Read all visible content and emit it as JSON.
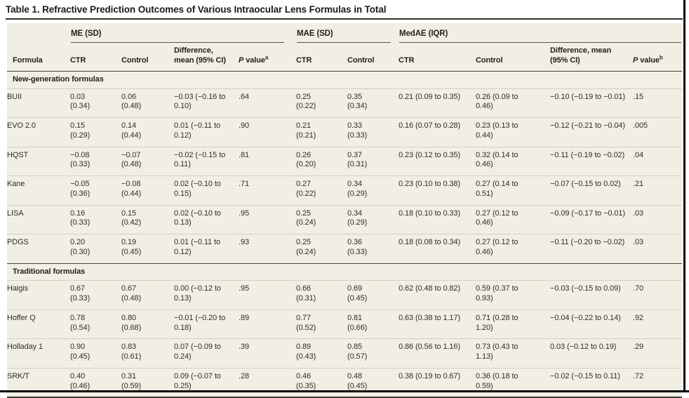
{
  "page": {
    "title": "Table 1. Refractive Prediction Outcomes of Various Intraocular Lens Formulas in Total"
  },
  "table": {
    "groups": [
      {
        "label": "ME (SD)"
      },
      {
        "label": "MAE (SD)"
      },
      {
        "label": "MedAE (IQR)"
      }
    ],
    "columns": {
      "formula": "Formula",
      "ctr": "CTR",
      "control": "Control",
      "diff": "Difference, mean (95% CI)",
      "p_italic": "P",
      "p_rest": " value",
      "p_sup_a": "a",
      "p_sup_b": "b"
    },
    "sections": [
      {
        "label": "New-generation formulas",
        "rows": [
          {
            "formula": "BUII",
            "cells": [
              "0.03 (0.34)",
              "0.06 (0.48)",
              "−0.03 (−0.16 to 0.10)",
              ".64",
              "0.25 (0.22)",
              "0.35 (0.34)",
              "0.21 (0.09 to 0.35)",
              "0.26 (0.09 to 0.46)",
              "−0.10 (−0.19 to −0.01)",
              ".15"
            ]
          },
          {
            "formula": "EVO 2.0",
            "cells": [
              "0.15 (0.29)",
              "0.14 (0.44)",
              "0.01 (−0.11 to 0.12)",
              ".90",
              "0.21 (0.21)",
              "0.33 (0.33)",
              "0.16 (0.07 to 0.28)",
              "0.23 (0.13 to 0.44)",
              "−0.12 (−0.21 to −0.04)",
              ".005"
            ]
          },
          {
            "formula": "HQST",
            "cells": [
              "−0.08 (0.33)",
              "−0.07 (0.48)",
              "−0.02 (−0.15 to 0.11)",
              ".81",
              "0.26 (0.20)",
              "0.37 (0.31)",
              "0.23 (0.12 to 0.35)",
              "0.32 (0.14 to 0.46)",
              "−0.11 (−0.19 to −0.02)",
              ".04"
            ]
          },
          {
            "formula": "Kane",
            "cells": [
              "−0.05 (0.36)",
              "−0.08 (0.44)",
              "0.02 (−0.10 to 0.15)",
              ".71",
              "0.27 (0.22)",
              "0.34 (0.29)",
              "0.23 (0.10 to 0.38)",
              "0.27 (0.14 to 0.51)",
              "−0.07 (−0.15 to 0.02)",
              ".21"
            ]
          },
          {
            "formula": "LISA",
            "cells": [
              "0.16 (0.33)",
              "0.15 (0.42)",
              "0.02 (−0.10 to 0.13)",
              ".95",
              "0.25 (0.24)",
              "0.34 (0.29)",
              "0.18 (0.10 to 0.33)",
              "0.27 (0.12 to 0.46)",
              "−0.09 (−0.17 to −0.01)",
              ".03"
            ]
          },
          {
            "formula": "PDGS",
            "cells": [
              "0.20 (0.30)",
              "0.19 (0.45)",
              "0.01 (−0.11 to 0.12)",
              ".93",
              "0.25 (0.24)",
              "0.36 (0.33)",
              "0.18 (0.08 to 0.34)",
              "0.27 (0.12 to 0.46)",
              "−0.11 (−0.20 to −0.02)",
              ".03"
            ]
          }
        ]
      },
      {
        "label": "Traditional formulas",
        "rows": [
          {
            "formula": "Haigis",
            "cells": [
              "0.67 (0.33)",
              "0.67 (0.48)",
              "0.00 (−0.12 to 0.13)",
              ".95",
              "0.66 (0.31)",
              "0.69 (0.45)",
              "0.62 (0.48 to 0.82)",
              "0.59 (0.37 to 0.93)",
              "−0.03 (−0.15 to 0.09)",
              ".70"
            ]
          },
          {
            "formula": "Hoffer Q",
            "cells": [
              "0.78 (0.54)",
              "0.80 (0.68)",
              "−0.01 (−0.20 to 0.18)",
              ".89",
              "0.77 (0.52)",
              "0.81 (0.66)",
              "0.63 (0.38 to 1.17)",
              "0.71 (0.28 to 1.20)",
              "−0.04 (−0.22 to 0.14)",
              ".92"
            ]
          },
          {
            "formula": "Holladay 1",
            "cells": [
              "0.90 (0.45)",
              "0.83 (0.61)",
              "0.07 (−0.09 to 0.24)",
              ".39",
              "0.89 (0.43)",
              "0.85 (0.57)",
              "0.86 (0.56 to 1.16)",
              "0.73 (0.43 to 1.13)",
              "0.03 (−0.12 to 0.19)",
              ".29"
            ]
          },
          {
            "formula": "SRK/T",
            "cells": [
              "0.40 (0.46)",
              "0.31 (0.59)",
              "0.09 (−0.07 to 0.25)",
              ".28",
              "0.46 (0.35)",
              "0.48 (0.45)",
              "0.38 (0.19 to 0.67)",
              "0.36 (0.18 to 0.59)",
              "−0.02 (−0.15 to 0.11)",
              ".72"
            ]
          }
        ]
      }
    ],
    "colors": {
      "table_background": "#F1EFE4",
      "dark_rule": "#3C3B35",
      "light_rule": "#D2CFC3",
      "text": "#2E2D28"
    }
  }
}
